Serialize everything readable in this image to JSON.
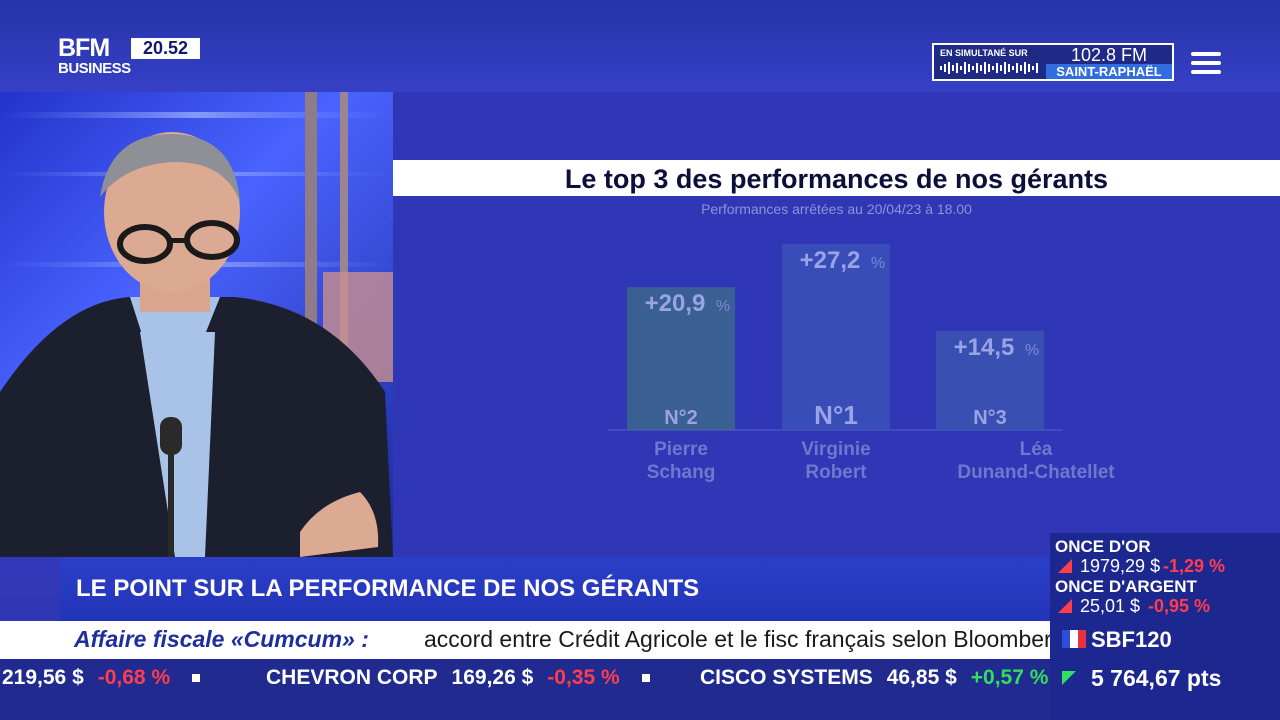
{
  "header": {
    "logo_top": "BFM",
    "logo_bottom": "BUSINESS",
    "clock": "20.52",
    "radio": {
      "label": "EN SIMULTANÉ SUR",
      "frequency": "102.8 FM",
      "city": "SAINT-RAPHAËL"
    },
    "menu_icon": "hamburger-menu-icon"
  },
  "screen": {
    "title": "Le top 3 des performances de nos gérants",
    "subtitle": "Performances arrêtées au 20/04/23 à 18.00"
  },
  "chart_data": {
    "type": "bar",
    "title": "Le top 3 des performances de nos gérants",
    "subtitle": "Performances arrêtées au 20/04/23 à 18.00",
    "categories": [
      "Pierre Schang",
      "Virginie Robert",
      "Léa Dunand-Chatellet"
    ],
    "category_lines": [
      [
        "Pierre",
        "Schang"
      ],
      [
        "Virginie",
        "Robert"
      ],
      [
        "Léa",
        "Dunand-Chatellet"
      ]
    ],
    "values": [
      20.9,
      27.2,
      14.5
    ],
    "value_labels": [
      "+20,9",
      "+27,2",
      "+14,5"
    ],
    "unit": "%",
    "ranks": [
      "N°2",
      "N°1",
      "N°3"
    ],
    "ylim": [
      0,
      30
    ],
    "grid": false,
    "colors": [
      "#3f6e86",
      "#3d56b8",
      "#3d5ab0"
    ]
  },
  "headline": "LE POINT SUR LA PERFORMANCE DE NOS GÉRANTS",
  "news": {
    "topic": "Affaire fiscale «Cumcum» :",
    "text": "accord entre Crédit Agricole et le fisc français selon Bloomberg."
  },
  "ticker": [
    {
      "name": "",
      "price": "219,56 $",
      "change": "-0,68 %",
      "dir": "down"
    },
    {
      "name": "CHEVRON CORP",
      "price": "169,26 $",
      "change": "-0,35 %",
      "dir": "down"
    },
    {
      "name": "CISCO SYSTEMS",
      "price": "46,85 $",
      "change": "+0,57 %",
      "dir": "up"
    }
  ],
  "markets": {
    "gold": {
      "name": "ONCE D'OR",
      "value": "1979,29 $",
      "change": "-1,29 %"
    },
    "silver": {
      "name": "ONCE D'ARGENT",
      "value": "25,01 $",
      "change": "-0,95 %"
    },
    "sbf": {
      "name": "SBF120",
      "value": "5 764,67 pts"
    }
  },
  "colors": {
    "brand_blue": "#2b3ec8",
    "negative": "#ff3d4c",
    "positive": "#2ee05b"
  }
}
